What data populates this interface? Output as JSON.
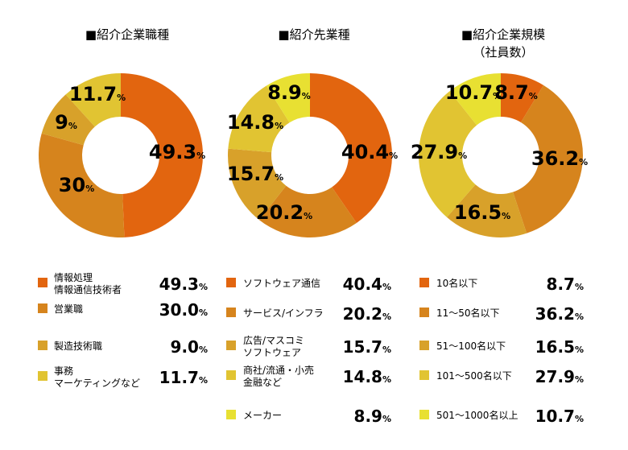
{
  "chart_data": [
    {
      "type": "pie",
      "title": "■紹介企業職種",
      "subtitle": "",
      "categories": [
        "情報処理\n情報通信技術者",
        "営業職",
        "製造技術職",
        "事務\nマーケティングなど"
      ],
      "values": [
        49.3,
        30.0,
        9.0,
        11.7
      ],
      "slice_labels": [
        "49.3",
        "30",
        "9",
        "11.7"
      ],
      "legend_values": [
        "49.3",
        "30.0",
        "9.0",
        "11.7"
      ],
      "colors": [
        "#e2650f",
        "#d6841d",
        "#d8a12a",
        "#e1c432"
      ]
    },
    {
      "type": "pie",
      "title": "■紹介先業種",
      "subtitle": "",
      "categories": [
        "ソフトウェア通信",
        "サービス/インフラ",
        "広告/マスコミ\nソフトウェア",
        "商社/流通・小売\n金融など",
        "メーカー"
      ],
      "values": [
        40.4,
        20.2,
        15.7,
        14.8,
        8.9
      ],
      "slice_labels": [
        "40.4",
        "20.2",
        "15.7",
        "14.8",
        "8.9"
      ],
      "legend_values": [
        "40.4",
        "20.2",
        "15.7",
        "14.8",
        "8.9"
      ],
      "colors": [
        "#e2650f",
        "#d6841d",
        "#d8a12a",
        "#e1c432",
        "#e8e032"
      ]
    },
    {
      "type": "pie",
      "title": "■紹介企業規模",
      "subtitle": "（社員数）",
      "categories": [
        "10名以下",
        "11～50名以下",
        "51～100名以下",
        "101～500名以下",
        "501～1000名以上"
      ],
      "values": [
        8.7,
        36.2,
        16.5,
        27.9,
        10.7
      ],
      "slice_labels": [
        "8.7",
        "36.2",
        "16.5",
        "27.9",
        "10.7"
      ],
      "legend_values": [
        "8.7",
        "36.2",
        "16.5",
        "27.9",
        "10.7"
      ],
      "colors": [
        "#e2650f",
        "#d6841d",
        "#d8a12a",
        "#e1c432",
        "#e8e032"
      ]
    }
  ],
  "percent_sign": "%"
}
